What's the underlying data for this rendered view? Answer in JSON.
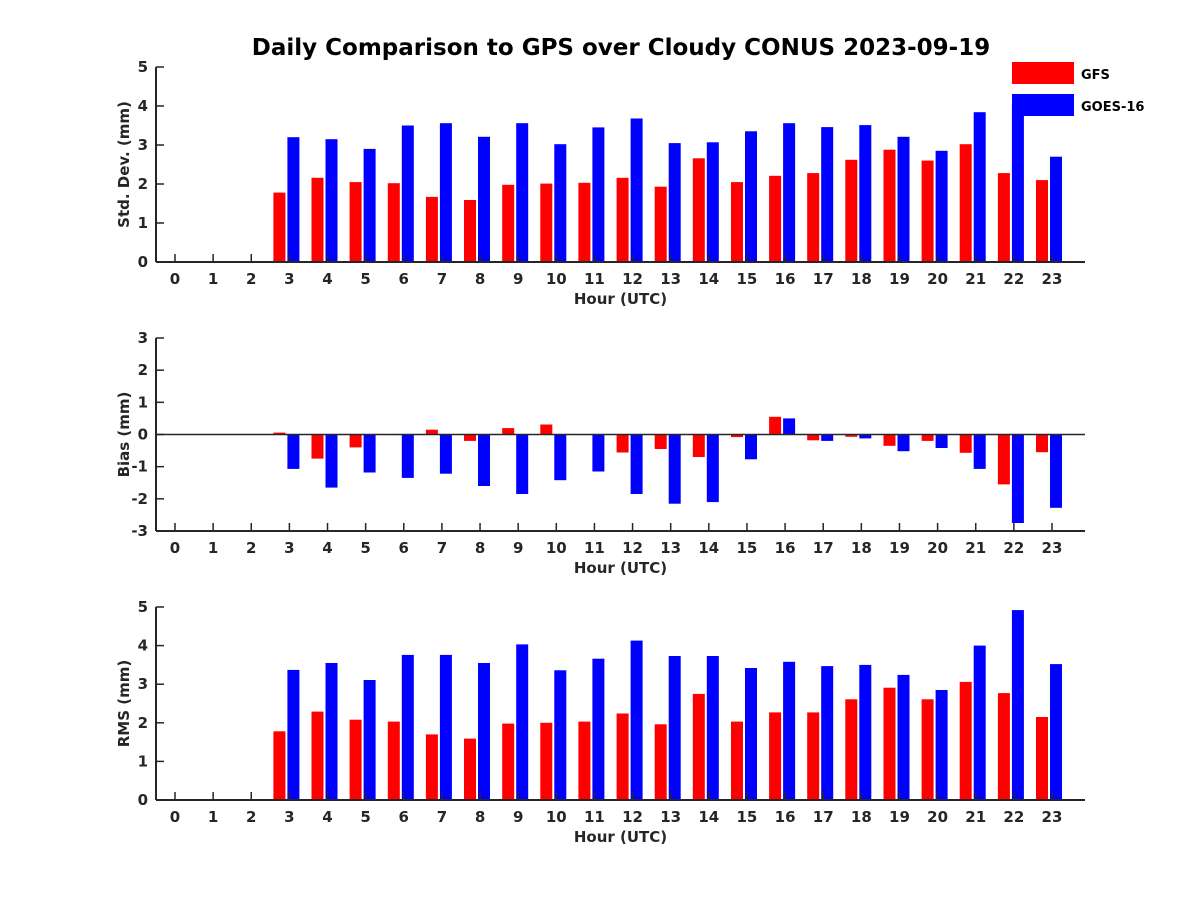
{
  "title": "Daily Comparison to GPS over Cloudy CONUS 2023-09-19",
  "legend": [
    {
      "name": "GFS",
      "color": "#ff0000"
    },
    {
      "name": "GOES-16",
      "color": "#0000ff"
    }
  ],
  "chart_data": [
    {
      "type": "bar",
      "xlabel": "Hour (UTC)",
      "ylabel": "Std. Dev. (mm)",
      "ylim": [
        0,
        5
      ],
      "yticks": [
        0,
        1,
        2,
        3,
        4,
        5
      ],
      "categories": [
        "0",
        "1",
        "2",
        "3",
        "4",
        "5",
        "6",
        "7",
        "8",
        "9",
        "10",
        "11",
        "12",
        "13",
        "14",
        "15",
        "16",
        "17",
        "18",
        "19",
        "20",
        "21",
        "22",
        "23"
      ],
      "series": [
        {
          "name": "GFS",
          "color": "#ff0000",
          "values": [
            null,
            null,
            null,
            1.78,
            2.16,
            2.05,
            2.02,
            1.67,
            1.59,
            1.98,
            2.01,
            2.03,
            2.16,
            1.93,
            2.66,
            2.05,
            2.21,
            2.28,
            2.62,
            2.88,
            2.6,
            3.02,
            2.28,
            2.1
          ]
        },
        {
          "name": "GOES-16",
          "color": "#0000ff",
          "values": [
            null,
            null,
            null,
            3.2,
            3.15,
            2.9,
            3.5,
            3.56,
            3.21,
            3.56,
            3.02,
            3.45,
            3.68,
            3.05,
            3.07,
            3.35,
            3.56,
            3.46,
            3.51,
            3.21,
            2.85,
            3.84,
            4.05,
            2.7
          ]
        }
      ]
    },
    {
      "type": "bar",
      "xlabel": "Hour (UTC)",
      "ylabel": "Bias (mm)",
      "ylim": [
        -3,
        3
      ],
      "yticks": [
        -3,
        -2,
        -1,
        0,
        1,
        2,
        3
      ],
      "categories": [
        "0",
        "1",
        "2",
        "3",
        "4",
        "5",
        "6",
        "7",
        "8",
        "9",
        "10",
        "11",
        "12",
        "13",
        "14",
        "15",
        "16",
        "17",
        "18",
        "19",
        "20",
        "21",
        "22",
        "23"
      ],
      "series": [
        {
          "name": "GFS",
          "color": "#ff0000",
          "values": [
            null,
            null,
            null,
            0.06,
            -0.75,
            -0.4,
            -0.02,
            0.15,
            -0.2,
            0.2,
            0.31,
            -0.02,
            -0.56,
            -0.45,
            -0.7,
            -0.08,
            0.55,
            -0.18,
            -0.07,
            -0.35,
            -0.2,
            -0.57,
            -1.55,
            -0.55
          ]
        },
        {
          "name": "GOES-16",
          "color": "#0000ff",
          "values": [
            null,
            null,
            null,
            -1.07,
            -1.65,
            -1.18,
            -1.35,
            -1.22,
            -1.6,
            -1.85,
            -1.42,
            -1.15,
            -1.85,
            -2.15,
            -2.1,
            -0.77,
            0.5,
            -0.2,
            -0.12,
            -0.52,
            -0.42,
            -1.07,
            -2.75,
            -2.28
          ]
        }
      ]
    },
    {
      "type": "bar",
      "xlabel": "Hour (UTC)",
      "ylabel": "RMS (mm)",
      "ylim": [
        0,
        5
      ],
      "yticks": [
        0,
        1,
        2,
        3,
        4,
        5
      ],
      "categories": [
        "0",
        "1",
        "2",
        "3",
        "4",
        "5",
        "6",
        "7",
        "8",
        "9",
        "10",
        "11",
        "12",
        "13",
        "14",
        "15",
        "16",
        "17",
        "18",
        "19",
        "20",
        "21",
        "22",
        "23"
      ],
      "series": [
        {
          "name": "GFS",
          "color": "#ff0000",
          "values": [
            null,
            null,
            null,
            1.78,
            2.29,
            2.08,
            2.03,
            1.7,
            1.59,
            1.98,
            2.0,
            2.03,
            2.24,
            1.96,
            2.75,
            2.03,
            2.27,
            2.27,
            2.61,
            2.91,
            2.61,
            3.06,
            2.77,
            2.15
          ]
        },
        {
          "name": "GOES-16",
          "color": "#0000ff",
          "values": [
            null,
            null,
            null,
            3.37,
            3.55,
            3.11,
            3.76,
            3.76,
            3.55,
            4.03,
            3.36,
            3.66,
            4.13,
            3.73,
            3.73,
            3.42,
            3.58,
            3.47,
            3.5,
            3.24,
            2.85,
            4.0,
            4.92,
            3.52
          ]
        }
      ]
    }
  ]
}
